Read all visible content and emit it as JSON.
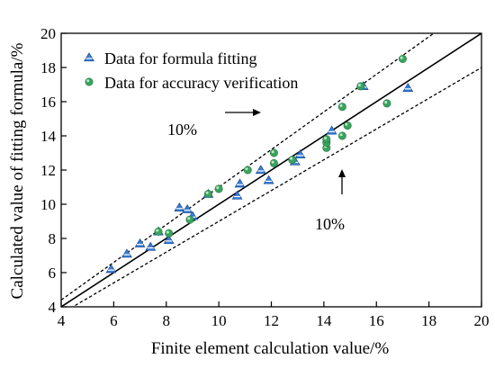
{
  "chart_data": {
    "type": "scatter",
    "xlabel": "Finite element calculation value/%",
    "ylabel": "Calculated value of fitting formula/%",
    "xlim": [
      4,
      20
    ],
    "ylim": [
      4,
      20
    ],
    "xticks": [
      4,
      6,
      8,
      10,
      12,
      14,
      16,
      18,
      20
    ],
    "yticks": [
      4,
      6,
      8,
      10,
      12,
      14,
      16,
      18,
      20
    ],
    "grid": false,
    "legend_position": "top-left",
    "series": [
      {
        "name": "Data for formula fitting",
        "marker": "triangle",
        "color": "#3b7fd6",
        "points": [
          [
            5.9,
            6.2
          ],
          [
            6.5,
            7.1
          ],
          [
            7.0,
            7.7
          ],
          [
            7.4,
            7.5
          ],
          [
            7.7,
            8.4
          ],
          [
            8.1,
            7.9
          ],
          [
            8.5,
            9.8
          ],
          [
            8.8,
            9.7
          ],
          [
            9.0,
            9.3
          ],
          [
            9.6,
            10.6
          ],
          [
            10.7,
            10.5
          ],
          [
            10.8,
            11.2
          ],
          [
            11.6,
            12.0
          ],
          [
            11.9,
            11.4
          ],
          [
            12.9,
            12.5
          ],
          [
            13.1,
            12.9
          ],
          [
            14.3,
            14.3
          ],
          [
            15.5,
            16.9
          ],
          [
            17.2,
            16.8
          ]
        ]
      },
      {
        "name": "Data for accuracy verification",
        "marker": "circle",
        "color": "#3aa35e",
        "points": [
          [
            7.7,
            8.4
          ],
          [
            8.1,
            8.3
          ],
          [
            8.9,
            9.1
          ],
          [
            9.6,
            10.6
          ],
          [
            10.0,
            10.9
          ],
          [
            11.1,
            12.0
          ],
          [
            12.1,
            12.4
          ],
          [
            12.1,
            13.0
          ],
          [
            12.8,
            12.6
          ],
          [
            14.1,
            13.3
          ],
          [
            14.1,
            13.6
          ],
          [
            14.1,
            13.8
          ],
          [
            14.7,
            14.0
          ],
          [
            14.7,
            15.7
          ],
          [
            14.9,
            14.6
          ],
          [
            15.4,
            16.9
          ],
          [
            16.4,
            15.9
          ],
          [
            17.0,
            18.5
          ]
        ]
      }
    ],
    "reference_lines": [
      {
        "style": "solid",
        "equation": "y = x"
      },
      {
        "style": "dashed",
        "equation": "y = 1.1x"
      },
      {
        "style": "dashed",
        "equation": "y = 0.9x"
      }
    ],
    "annotations": [
      {
        "text": "10%",
        "arrow": "right"
      },
      {
        "text": "10%",
        "arrow": "up"
      }
    ]
  }
}
